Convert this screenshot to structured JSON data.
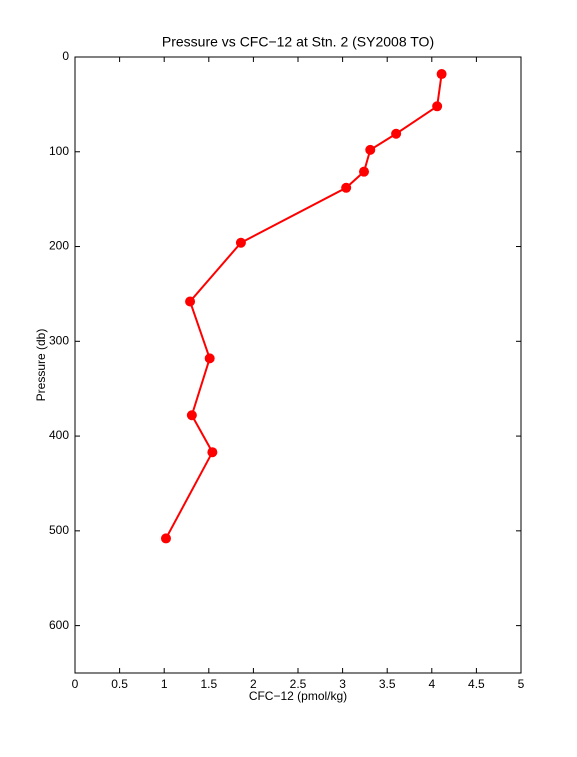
{
  "chart_data": {
    "type": "line",
    "title": "Pressure vs CFC−12 at Stn. 2 (SY2008 TO)",
    "x_label": "CFC−12 (pmol/kg)",
    "y_label": "Pressure (db)",
    "x": [
      4.11,
      4.06,
      3.6,
      3.31,
      3.24,
      3.04,
      1.86,
      1.29,
      1.51,
      1.31,
      1.54,
      1.02
    ],
    "values": [
      18,
      52,
      81,
      98,
      121,
      138,
      196,
      258,
      318,
      378,
      417,
      508
    ],
    "color": "#ff0000",
    "xlim": [
      0,
      5
    ],
    "xticks": [
      0,
      0.5,
      1,
      1.5,
      2,
      2.5,
      3,
      3.5,
      4,
      4.5,
      5
    ],
    "ylim": [
      650,
      0
    ],
    "yticks": [
      0,
      100,
      200,
      300,
      400,
      500,
      600
    ],
    "grid": false
  }
}
